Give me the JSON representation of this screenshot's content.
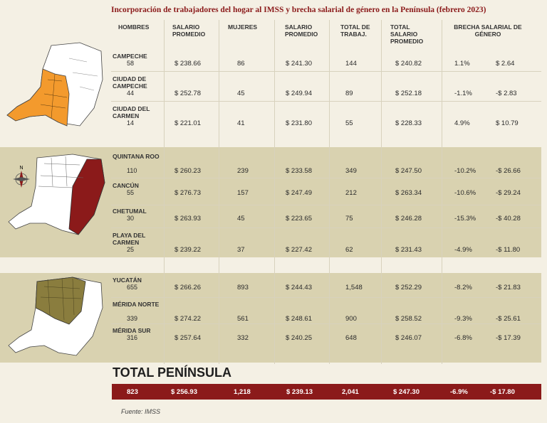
{
  "title": "Incorporación de trabajadores del hogar al IMSS y brecha salarial de género en la Península (febrero 2023)",
  "source": "Fuente: IMSS",
  "headers": {
    "hombres": "HOMBRES",
    "salario1": "SALARIO PROMEDIO",
    "mujeres": "MUJERES",
    "salario2": "SALARIO PROMEDIO",
    "total_trab": "TOTAL DE TRABAJ.",
    "total_salario": "TOTAL SALARIO PROMEDIO",
    "brecha": "BRECHA SALARIAL DE GÉNERO"
  },
  "colors": {
    "title": "#8b1a1a",
    "campeche_map": "#f39a2d",
    "qroo_map": "#8b1a1a",
    "yucatan_map": "#8a7d3e",
    "band": "#d9d2b0",
    "total_bar": "#8b1a1a"
  },
  "total": {
    "label": "TOTAL PENÍNSULA",
    "hombres": "823",
    "salario_h": "$ 256.93",
    "mujeres": "1,218",
    "salario_m": "$ 239.13",
    "total_trab": "2,041",
    "total_salario": "$ 247.30",
    "brecha_pct": "-6.9%",
    "brecha_monto": "-$ 17.80"
  },
  "chart_data": {
    "type": "table",
    "columns": [
      "HOMBRES",
      "SALARIO PROMEDIO",
      "MUJERES",
      "SALARIO PROMEDIO",
      "TOTAL DE TRABAJ.",
      "TOTAL SALARIO PROMEDIO",
      "BRECHA SALARIAL DE GÉNERO (%)",
      "BRECHA SALARIAL DE GÉNERO ($)"
    ],
    "rows": [
      {
        "name": "CAMPECHE",
        "hombres": "58",
        "salario_h": "$ 238.66",
        "mujeres": "86",
        "salario_m": "$ 241.30",
        "total": "144",
        "total_salario": "$ 240.82",
        "brecha_pct": "1.1%",
        "brecha_monto": "$ 2.64"
      },
      {
        "name": "CIUDAD DE CAMPECHE",
        "hombres": "44",
        "salario_h": "$ 252.78",
        "mujeres": "45",
        "salario_m": "$ 249.94",
        "total": "89",
        "total_salario": "$ 252.18",
        "brecha_pct": "-1.1%",
        "brecha_monto": "-$ 2.83"
      },
      {
        "name": "CIUDAD DEL CARMEN",
        "hombres": "14",
        "salario_h": "$ 221.01",
        "mujeres": "41",
        "salario_m": "$ 231.80",
        "total": "55",
        "total_salario": "$ 228.33",
        "brecha_pct": "4.9%",
        "brecha_monto": "$ 10.79"
      },
      {
        "name": "QUINTANA ROO",
        "hombres": "110",
        "salario_h": "$ 260.23",
        "mujeres": "239",
        "salario_m": "$ 233.58",
        "total": "349",
        "total_salario": "$ 247.50",
        "brecha_pct": "-10.2%",
        "brecha_monto": "-$ 26.66"
      },
      {
        "name": "CANCÚN",
        "hombres": "55",
        "salario_h": "$ 276.73",
        "mujeres": "157",
        "salario_m": "$ 247.49",
        "total": "212",
        "total_salario": "$ 263.34",
        "brecha_pct": "-10.6%",
        "brecha_monto": "-$ 29.24"
      },
      {
        "name": "CHETUMAL",
        "hombres": "30",
        "salario_h": "$ 263.93",
        "mujeres": "45",
        "salario_m": "$ 223.65",
        "total": "75",
        "total_salario": "$ 246.28",
        "brecha_pct": "-15.3%",
        "brecha_monto": "-$ 40.28"
      },
      {
        "name": "PLAYA DEL CARMEN",
        "hombres": "25",
        "salario_h": "$ 239.22",
        "mujeres": "37",
        "salario_m": "$ 227.42",
        "total": "62",
        "total_salario": "$ 231.43",
        "brecha_pct": "-4.9%",
        "brecha_monto": "-$ 11.80"
      },
      {
        "name": "YUCATÁN",
        "hombres": "655",
        "salario_h": "$ 266.26",
        "mujeres": "893",
        "salario_m": "$ 244.43",
        "total": "1,548",
        "total_salario": "$ 252.29",
        "brecha_pct": "-8.2%",
        "brecha_monto": "-$ 21.83"
      },
      {
        "name": "MÉRIDA NORTE",
        "hombres": "339",
        "salario_h": "$ 274.22",
        "mujeres": "561",
        "salario_m": "$ 248.61",
        "total": "900",
        "total_salario": "$ 258.52",
        "brecha_pct": "-9.3%",
        "brecha_monto": "-$ 25.61"
      },
      {
        "name": "MÉRIDA SUR",
        "hombres": "316",
        "salario_h": "$ 257.64",
        "mujeres": "332",
        "salario_m": "$ 240.25",
        "total": "648",
        "total_salario": "$ 246.07",
        "brecha_pct": "-6.8%",
        "brecha_monto": "-$ 17.39"
      }
    ],
    "compass_label": "N"
  }
}
